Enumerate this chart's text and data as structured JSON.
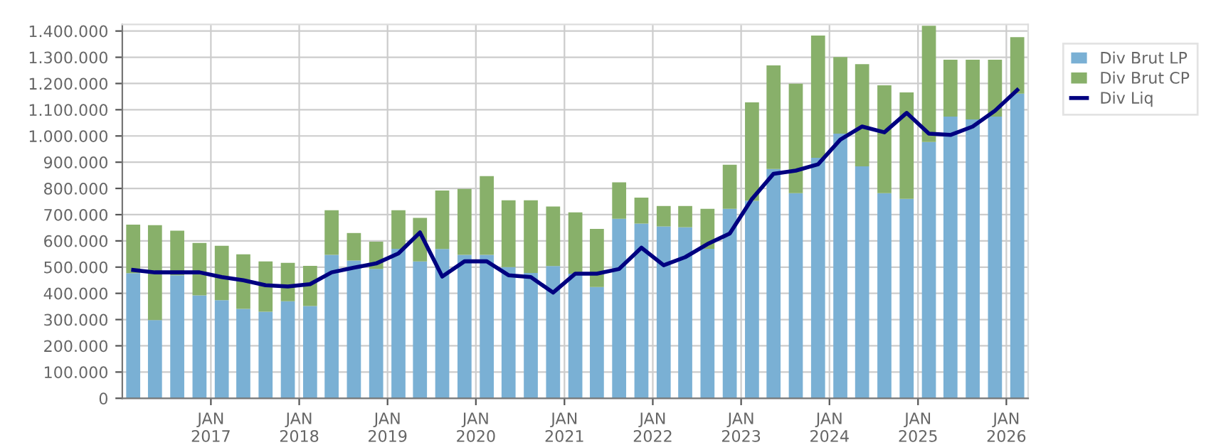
{
  "chart_data": {
    "type": "bar",
    "stacked": true,
    "grid": true,
    "legend": "top right",
    "x": [
      "2016-02-15",
      "2016-05-15",
      "2016-08-15",
      "2016-11-15",
      "2017-02-15",
      "2017-05-15",
      "2017-08-15",
      "2017-11-15",
      "2018-02-15",
      "2018-05-15",
      "2018-08-15",
      "2018-11-15",
      "2019-02-15",
      "2019-05-15",
      "2019-08-15",
      "2019-11-15",
      "2020-02-15",
      "2020-05-15",
      "2020-08-15",
      "2020-11-15",
      "2021-02-15",
      "2021-05-15",
      "2021-08-15",
      "2021-11-15",
      "2022-02-15",
      "2022-05-15",
      "2022-08-15",
      "2022-11-15",
      "2023-02-15",
      "2023-05-15",
      "2023-08-15",
      "2023-11-15",
      "2024-02-15",
      "2024-05-15",
      "2024-08-15",
      "2024-11-15",
      "2025-02-15",
      "2025-05-15",
      "2025-08-15",
      "2025-11-15",
      "2026-02-15"
    ],
    "series": [
      {
        "name": "Div Brut LP",
        "color": "#7ab0d4",
        "values": [
          477000,
          298000,
          469000,
          392000,
          374000,
          341000,
          330000,
          370000,
          352000,
          547000,
          525000,
          493000,
          570000,
          522000,
          569000,
          547000,
          547000,
          500000,
          478000,
          504000,
          475000,
          424000,
          684000,
          666000,
          655000,
          652000,
          570000,
          722000,
          753000,
          874000,
          782000,
          917000,
          1009000,
          884000,
          782000,
          760000,
          977000,
          1074000,
          1063000,
          1074000,
          1161000
        ]
      },
      {
        "name": "Div Brut CP",
        "color": "#88b06a",
        "values": [
          185000,
          362000,
          170000,
          200000,
          207000,
          208000,
          192000,
          146000,
          153000,
          170000,
          105000,
          104000,
          147000,
          166000,
          223000,
          251000,
          300000,
          255000,
          277000,
          227000,
          234000,
          222000,
          139000,
          99000,
          78000,
          81000,
          152000,
          168000,
          375000,
          395000,
          417000,
          466000,
          292000,
          390000,
          411000,
          406000,
          443000,
          217000,
          228000,
          217000,
          216000
        ]
      },
      {
        "name": "Div Liq",
        "type": "line",
        "color": "#000080",
        "values": [
          489000,
          480000,
          480000,
          480000,
          462000,
          450000,
          431000,
          426000,
          435000,
          480000,
          498000,
          514000,
          552000,
          632000,
          464000,
          522000,
          522000,
          469000,
          462000,
          403000,
          475000,
          475000,
          493000,
          574000,
          507000,
          538000,
          588000,
          628000,
          760000,
          856000,
          868000,
          892000,
          986000,
          1036000,
          1014000,
          1088000,
          1009000,
          1004000,
          1036000,
          1096000,
          1175000
        ]
      }
    ],
    "xlim": [
      "2016-01-01",
      "2026-04-01"
    ],
    "xticks": [
      {
        "value": "2017-01-01",
        "label": "JAN\n2017"
      },
      {
        "value": "2018-01-01",
        "label": "JAN\n2018"
      },
      {
        "value": "2019-01-01",
        "label": "JAN\n2019"
      },
      {
        "value": "2020-01-01",
        "label": "JAN\n2020"
      },
      {
        "value": "2021-01-01",
        "label": "JAN\n2021"
      },
      {
        "value": "2022-01-01",
        "label": "JAN\n2022"
      },
      {
        "value": "2023-01-01",
        "label": "JAN\n2023"
      },
      {
        "value": "2024-01-01",
        "label": "JAN\n2024"
      },
      {
        "value": "2025-01-01",
        "label": "JAN\n2025"
      },
      {
        "value": "2026-01-01",
        "label": "JAN\n2026"
      }
    ],
    "ylim": [
      0,
      1425000
    ],
    "yticks": [
      0,
      {
        "value": 100000,
        "label": "100.000"
      },
      {
        "value": 200000,
        "label": "200.000"
      },
      {
        "value": 300000,
        "label": "300.000"
      },
      {
        "value": 400000,
        "label": "400.000"
      },
      {
        "value": 500000,
        "label": "500.000"
      },
      {
        "value": 600000,
        "label": "600.000"
      },
      {
        "value": 700000,
        "label": "700.000"
      },
      {
        "value": 800000,
        "label": "800.000"
      },
      {
        "value": 900000,
        "label": "900.000"
      },
      {
        "value": 1000000,
        "label": "1.000.000"
      },
      {
        "value": 1100000,
        "label": "1.100.000"
      },
      {
        "value": 1200000,
        "label": "1.200.000"
      },
      {
        "value": 1300000,
        "label": "1.300.000"
      },
      {
        "value": 1400000,
        "label": "1.400.000"
      }
    ]
  }
}
